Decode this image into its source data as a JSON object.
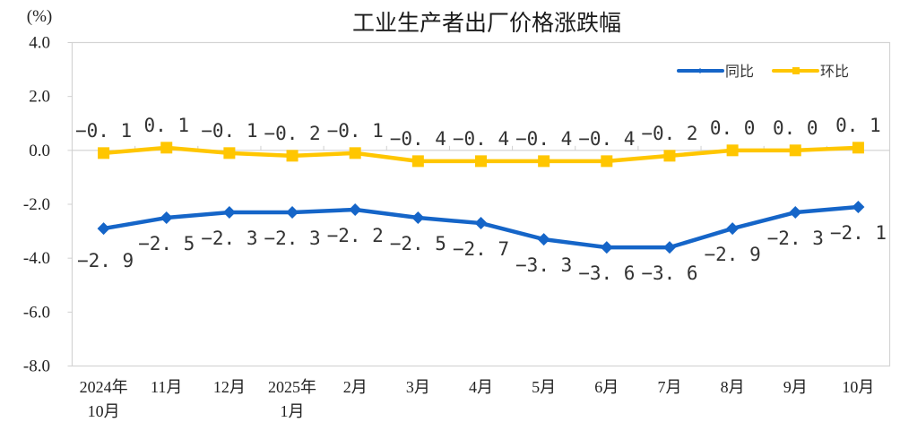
{
  "chart_data": {
    "type": "line",
    "title": "工业生产者出厂价格涨跌幅",
    "unit_label": "(%)",
    "xlabel": "",
    "ylabel": "(%)",
    "ylim": [
      -8.0,
      4.0
    ],
    "yticks": [
      "4.0",
      "2.0",
      "0.0",
      "-2.0",
      "-4.0",
      "-6.0",
      "-8.0"
    ],
    "ytick_values": [
      4,
      2,
      0,
      -2,
      -4,
      -6,
      -8
    ],
    "grid": false,
    "legend_position": "top-right inside plot",
    "categories": [
      [
        "2024年",
        "10月"
      ],
      [
        "11月"
      ],
      [
        "12月"
      ],
      [
        "2025年",
        "1月"
      ],
      [
        "2月"
      ],
      [
        "3月"
      ],
      [
        "4月"
      ],
      [
        "5月"
      ],
      [
        "6月"
      ],
      [
        "7月"
      ],
      [
        "8月"
      ],
      [
        "9月"
      ],
      [
        "10月"
      ]
    ],
    "series": [
      {
        "name": "同比",
        "color": "#1565C8",
        "marker": "diamond",
        "label_position": "below",
        "values": [
          -2.9,
          -2.5,
          -2.3,
          -2.3,
          -2.2,
          -2.5,
          -2.7,
          -3.3,
          -3.6,
          -3.6,
          -2.9,
          -2.3,
          -2.1
        ],
        "labels": [
          "-2.9",
          "-2.5",
          "-2.3",
          "-2.3",
          "-2.2",
          "-2.5",
          "-2.7",
          "-3.3",
          "-3.6",
          "-3.6",
          "-2.9",
          "-2.3",
          "-2.1"
        ]
      },
      {
        "name": "环比",
        "color": "#FFC600",
        "marker": "square",
        "label_position": "above",
        "values": [
          -0.1,
          0.1,
          -0.1,
          -0.2,
          -0.1,
          -0.4,
          -0.4,
          -0.4,
          -0.4,
          -0.2,
          0.0,
          0.0,
          0.1
        ],
        "labels": [
          "-0.1",
          "0.1",
          "-0.1",
          "-0.2",
          "-0.1",
          "-0.4",
          "-0.4",
          "-0.4",
          "-0.4",
          "-0.2",
          "0.0",
          "0.0",
          "0.1"
        ]
      }
    ]
  },
  "layout_colors": {
    "axis": "#d0d0d0",
    "text": "#222222"
  }
}
